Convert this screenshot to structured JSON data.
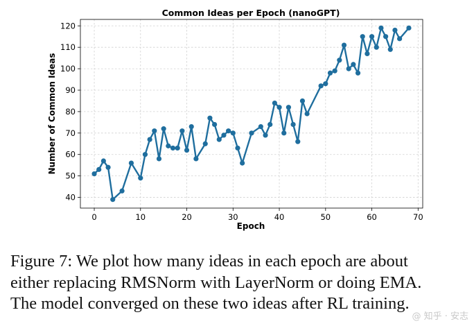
{
  "chart_data": {
    "type": "line",
    "title": "Common Ideas per Epoch (nanoGPT)",
    "xlabel": "Epoch",
    "ylabel": "Number of Common Ideas",
    "xlim": [
      -3,
      71
    ],
    "ylim": [
      35,
      123
    ],
    "xticks": [
      0,
      10,
      20,
      30,
      40,
      50,
      60,
      70
    ],
    "yticks": [
      40,
      50,
      60,
      70,
      80,
      90,
      100,
      110,
      120
    ],
    "grid": true,
    "legend": "none",
    "series": [
      {
        "name": "Common Ideas",
        "color": "#1f6e9e",
        "points": [
          [
            0,
            51
          ],
          [
            1,
            53
          ],
          [
            2,
            57
          ],
          [
            3,
            54
          ],
          [
            4,
            39
          ],
          [
            6,
            43
          ],
          [
            8,
            56
          ],
          [
            10,
            49
          ],
          [
            11,
            60
          ],
          [
            12,
            67
          ],
          [
            13,
            71
          ],
          [
            14,
            58
          ],
          [
            15,
            72
          ],
          [
            16,
            64
          ],
          [
            17,
            63
          ],
          [
            18,
            63
          ],
          [
            19,
            71
          ],
          [
            20,
            62
          ],
          [
            21,
            73
          ],
          [
            22,
            58
          ],
          [
            24,
            65
          ],
          [
            25,
            77
          ],
          [
            26,
            74
          ],
          [
            27,
            67
          ],
          [
            28,
            69
          ],
          [
            29,
            71
          ],
          [
            30,
            70
          ],
          [
            31,
            63
          ],
          [
            32,
            56
          ],
          [
            34,
            70
          ],
          [
            36,
            73
          ],
          [
            37,
            69
          ],
          [
            38,
            74
          ],
          [
            39,
            84
          ],
          [
            40,
            82
          ],
          [
            41,
            70
          ],
          [
            42,
            82
          ],
          [
            43,
            74
          ],
          [
            44,
            66
          ],
          [
            45,
            85
          ],
          [
            46,
            79
          ],
          [
            49,
            92
          ],
          [
            50,
            93
          ],
          [
            51,
            98
          ],
          [
            52,
            99
          ],
          [
            53,
            104
          ],
          [
            54,
            111
          ],
          [
            55,
            100
          ],
          [
            56,
            102
          ],
          [
            57,
            98
          ],
          [
            58,
            115
          ],
          [
            59,
            107
          ],
          [
            60,
            115
          ],
          [
            61,
            110
          ],
          [
            62,
            119
          ],
          [
            63,
            115
          ],
          [
            64,
            109
          ],
          [
            65,
            118
          ],
          [
            66,
            114
          ],
          [
            68,
            119
          ]
        ]
      }
    ]
  },
  "caption": "Figure 7: We plot how many ideas in each epoch are about\neither replacing RMSNorm with LayerNorm or doing EMA.\nThe model converged on these two ideas after RL training.",
  "watermark": "@ 知乎 · 安志"
}
